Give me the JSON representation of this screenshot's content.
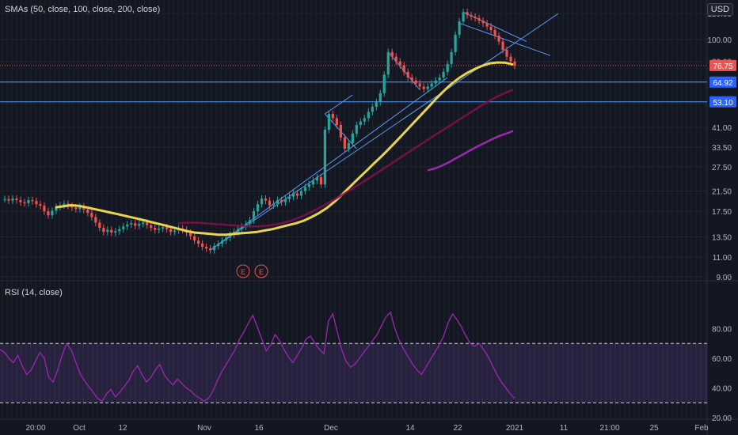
{
  "chart_data": [
    {
      "type": "candlestick",
      "title": "SMAs (50, close, 100, close, 200, close)",
      "currency": "USD",
      "yscale": "log",
      "ylim": [
        9.0,
        140
      ],
      "y_ticks": [
        "130.00",
        "100.00",
        "80.00",
        "65.00",
        "52.00",
        "41.00",
        "33.50",
        "27.50",
        "21.50",
        "17.50",
        "13.50",
        "11.00",
        "9.00"
      ],
      "price_labels": [
        {
          "value": "76.75",
          "color": "#ef5350"
        },
        {
          "value": "64.92",
          "color": "#2962ff"
        },
        {
          "value": "53.10",
          "color": "#2962ff"
        }
      ],
      "horizontal_lines": [
        76.75,
        64.92,
        53.1
      ],
      "x_ticks": [
        "20:00",
        "Oct",
        "12",
        "Nov",
        "16",
        "Dec",
        "14",
        "22",
        "2021",
        "11",
        "21:00",
        "25",
        "Feb"
      ],
      "events": [
        "E",
        "E"
      ],
      "candles_close": [
        19.8,
        19.5,
        19.9,
        19.6,
        19.2,
        19.0,
        19.6,
        19.4,
        18.8,
        18.5,
        17.5,
        16.8,
        17.6,
        18.3,
        18.6,
        18.9,
        18.5,
        18.2,
        17.9,
        18.4,
        17.8,
        17.2,
        16.5,
        15.6,
        14.8,
        14.2,
        14.5,
        14.1,
        14.3,
        14.6,
        15.0,
        15.3,
        15.5,
        15.1,
        15.4,
        15.6,
        15.2,
        14.8,
        14.5,
        14.7,
        14.9,
        14.6,
        14.2,
        14.4,
        14.7,
        14.5,
        14.1,
        13.6,
        13.0,
        12.6,
        12.2,
        12.0,
        11.8,
        12.3,
        12.6,
        13.0,
        13.4,
        13.8,
        14.2,
        14.6,
        15.0,
        15.4,
        16.0,
        17.5,
        18.8,
        19.9,
        19.5,
        18.6,
        18.9,
        19.6,
        19.2,
        19.8,
        20.3,
        21.0,
        20.5,
        21.5,
        22.4,
        23.0,
        23.9,
        24.7,
        23.0,
        40.0,
        47.0,
        45.0,
        42.0,
        37.0,
        33.0,
        35.0,
        38.5,
        42.0,
        43.5,
        45.0,
        48.0,
        50.5,
        53.0,
        58.0,
        70.0,
        88.0,
        84.0,
        80.0,
        77.0,
        72.0,
        68.0,
        66.0,
        64.0,
        62.0,
        60.5,
        62.0,
        64.0,
        66.0,
        68.0,
        72.0,
        78.0,
        88.0,
        105.0,
        120.0,
        132.0,
        128.0,
        126.0,
        124.0,
        121.0,
        118.0,
        114.0,
        110.0,
        104.0,
        98.0,
        90.0,
        84.0,
        80.0,
        76.75
      ],
      "series": [
        {
          "name": "SMA 50",
          "color": "#e8d44d",
          "values": [
            18.2,
            18.4,
            18.6,
            18.5,
            18.2,
            17.9,
            17.6,
            17.3,
            17.0,
            16.7,
            16.4,
            16.1,
            15.8,
            15.5,
            15.2,
            14.9,
            14.6,
            14.3,
            14.1,
            14.0,
            13.9,
            13.8,
            13.8,
            13.9,
            14.0,
            14.1,
            14.2,
            14.4,
            14.6,
            14.9,
            15.2,
            15.5,
            15.9,
            16.5,
            17.2,
            18.1,
            19.3,
            20.8,
            22.5,
            24.3,
            26.2,
            28.3,
            30.5,
            33.0,
            35.8,
            38.9,
            42.3,
            46.0,
            50.0,
            54.5,
            59.0,
            63.5,
            67.5,
            71.0,
            74.0,
            76.5,
            78.5,
            79.2,
            79.0,
            77.5
          ]
        },
        {
          "name": "SMA 100",
          "color": "#880e4f",
          "values": [
            15.5,
            15.6,
            15.6,
            15.5,
            15.4,
            15.3,
            15.2,
            15.1,
            15.0,
            15.0,
            15.1,
            15.3,
            15.6,
            16.0,
            16.6,
            17.3,
            18.1,
            19.0,
            20.0,
            21.1,
            22.3,
            23.6,
            25.0,
            26.5,
            28.1,
            29.8,
            31.6,
            33.5,
            35.5,
            37.6,
            39.8,
            42.1,
            44.6,
            47.2,
            50.0,
            52.8,
            55.5,
            58.0,
            60.0
          ]
        },
        {
          "name": "SMA 200",
          "color": "#9c27b0",
          "values": [
            26.5,
            27.0,
            27.8,
            28.8,
            30.0,
            31.2,
            32.5,
            33.8,
            35.0,
            36.3,
            37.5,
            38.5,
            39.5
          ]
        }
      ],
      "trendlines": 7
    },
    {
      "type": "line",
      "title": "RSI (14, close)",
      "ylim": [
        20,
        100
      ],
      "y_ticks": [
        "80.00",
        "60.00",
        "40.00",
        "20.00"
      ],
      "band": [
        30,
        70
      ],
      "color": "#9c27b0",
      "values": [
        66,
        64,
        60,
        57,
        62,
        55,
        49,
        52,
        58,
        64,
        60,
        47,
        44,
        52,
        62,
        70,
        66,
        58,
        50,
        45,
        41,
        37,
        33,
        31,
        36,
        39,
        34,
        37,
        41,
        45,
        51,
        55,
        49,
        44,
        47,
        52,
        56,
        49,
        45,
        42,
        46,
        43,
        40,
        38,
        35,
        33,
        31,
        33,
        38,
        45,
        51,
        56,
        61,
        66,
        73,
        78,
        84,
        89,
        81,
        73,
        65,
        69,
        76,
        72,
        66,
        61,
        57,
        62,
        67,
        73,
        75,
        70,
        66,
        63,
        85,
        90,
        78,
        66,
        58,
        54,
        56,
        60,
        64,
        68,
        72,
        76,
        82,
        88,
        91,
        80,
        72,
        66,
        61,
        56,
        52,
        49,
        54,
        59,
        64,
        69,
        75,
        84,
        90,
        86,
        81,
        75,
        70,
        68,
        70,
        66,
        61,
        55,
        49,
        44,
        40,
        36,
        33
      ]
    }
  ]
}
